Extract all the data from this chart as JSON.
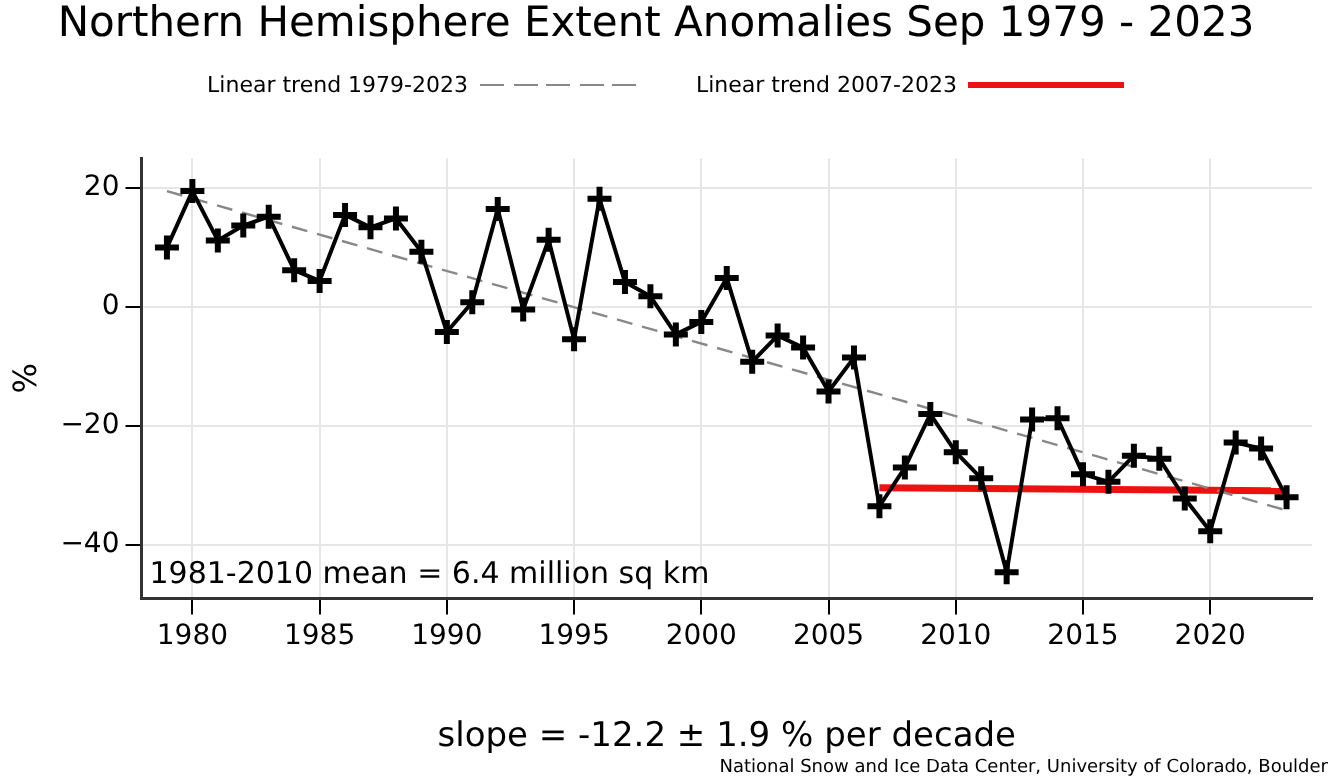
{
  "chart_data": {
    "type": "line",
    "title": "Northern Hemisphere Extent Anomalies Sep 1979 - 2023",
    "ylabel": "%",
    "x": [
      1979,
      1980,
      1981,
      1982,
      1983,
      1984,
      1985,
      1986,
      1987,
      1988,
      1989,
      1990,
      1991,
      1992,
      1993,
      1994,
      1995,
      1996,
      1997,
      1998,
      1999,
      2000,
      2001,
      2002,
      2003,
      2004,
      2005,
      2006,
      2007,
      2008,
      2009,
      2010,
      2011,
      2012,
      2013,
      2014,
      2015,
      2016,
      2017,
      2018,
      2019,
      2020,
      2021,
      2022,
      2023
    ],
    "series": [
      {
        "color": "#000000",
        "marker": "cross",
        "line_style": "solid",
        "values": [
          10,
          19.5,
          11.2,
          13.7,
          15.2,
          6.2,
          4.4,
          15.5,
          13.4,
          14.9,
          9.3,
          -4.2,
          0.8,
          16.5,
          -0.4,
          11.3,
          -5.4,
          18.2,
          4.2,
          1.8,
          -4.6,
          -2.5,
          4.9,
          -9.2,
          -4.8,
          -6.8,
          -14.2,
          -8.5,
          -33.5,
          -27,
          -18,
          -24.4,
          -28.8,
          -44.6,
          -18.9,
          -18.7,
          -28.1,
          -29.4,
          -25,
          -25.5,
          -32.2,
          -37.7,
          -22.8,
          -23.8,
          -32
        ]
      },
      {
        "name": "Linear trend 1979-2023",
        "color": "#888888",
        "marker": "none",
        "line_style": "dashed",
        "x": [
          1979,
          2023
        ],
        "values": [
          19.5,
          -34.2
        ]
      },
      {
        "name": "Linear trend 2007-2023",
        "color": "#ee1111",
        "marker": "none",
        "line_style": "solid",
        "x": [
          2007,
          2023
        ],
        "values": [
          -30.4,
          -30.9
        ]
      }
    ],
    "xlim": [
      1978,
      2024
    ],
    "xticks": [
      1980,
      1985,
      1990,
      1995,
      2000,
      2005,
      2010,
      2015,
      2020
    ],
    "ylim": [
      -49,
      25
    ],
    "yticks": [
      -40,
      -20,
      0,
      20
    ],
    "grid": true,
    "legend": "top",
    "annotations": [
      "1981-2010 mean = 6.4 million sq km",
      "slope = -12.2 ± 1.9 % per decade",
      "National Snow and Ice Data Center, University of Colorado, Boulder"
    ]
  }
}
